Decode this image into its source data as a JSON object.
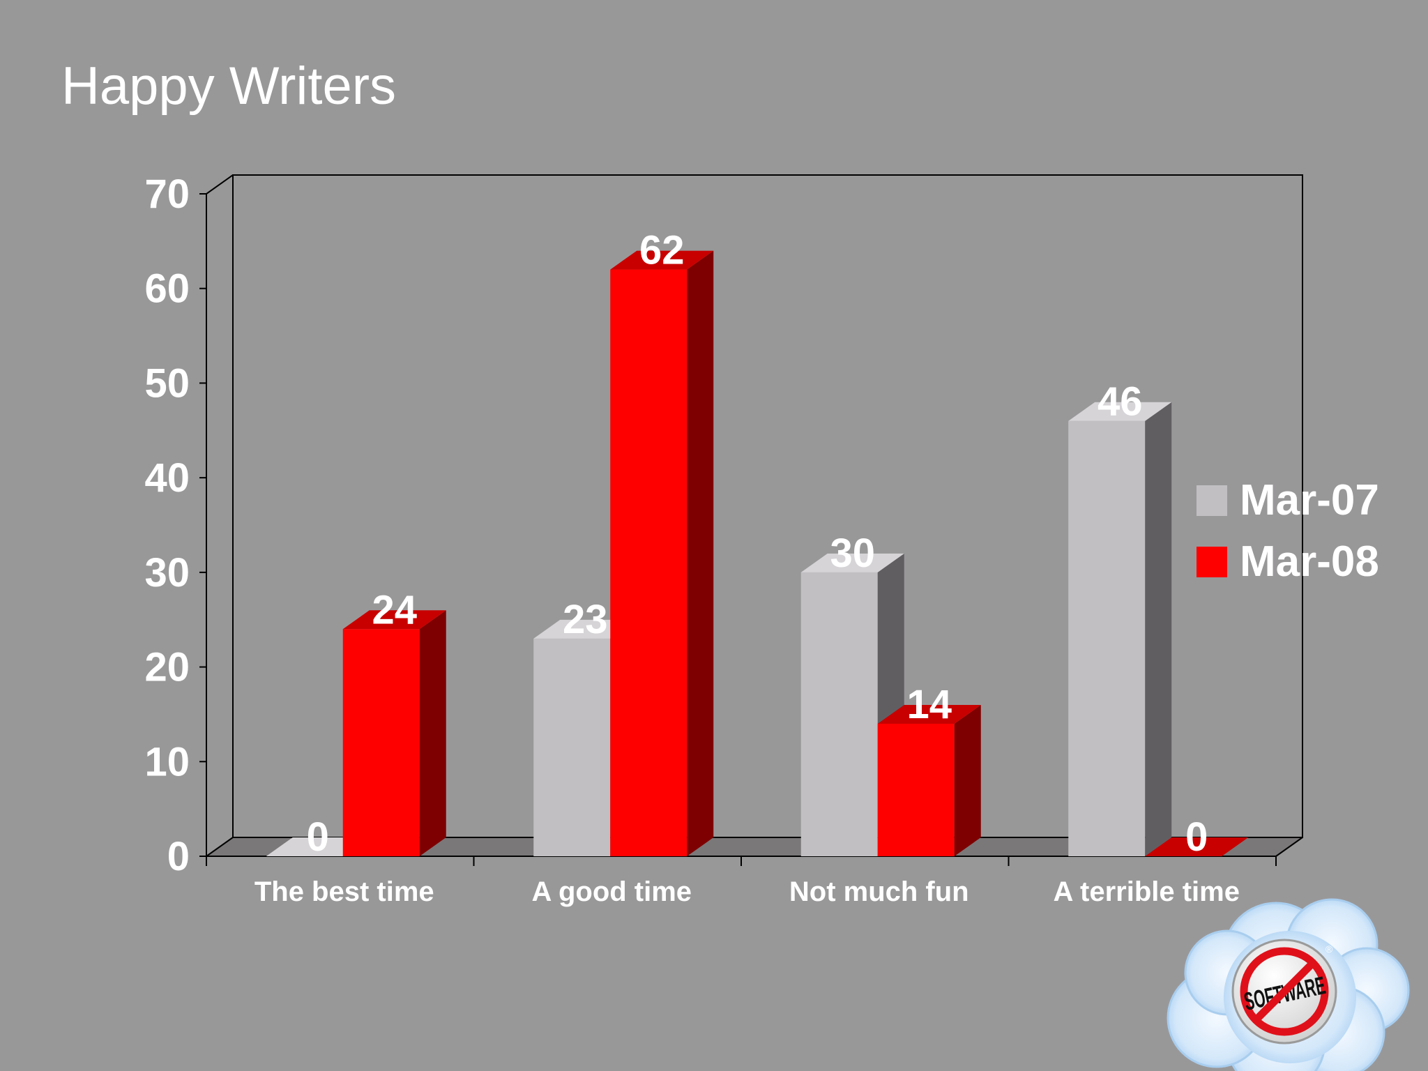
{
  "slide": {
    "title": "Happy Writers"
  },
  "chart_data": {
    "type": "bar",
    "title": "Happy Writers",
    "categories": [
      "The best time",
      "A good time",
      "Not much fun",
      "A terrible time"
    ],
    "series": [
      {
        "name": "Mar-07",
        "values": [
          0,
          23,
          30,
          46
        ],
        "color": "#c1bfc2",
        "side_color": "#615e62",
        "top_color": "#d6d4d7"
      },
      {
        "name": "Mar-08",
        "values": [
          24,
          62,
          14,
          0
        ],
        "color": "#ff0000",
        "side_color": "#7f0000",
        "top_color": "#c80000"
      }
    ],
    "ylim": [
      0,
      70
    ],
    "yticks": [
      0,
      10,
      20,
      30,
      40,
      50,
      60,
      70
    ],
    "data_labels": true,
    "legend": {
      "position": "right"
    },
    "style": "3d-clustered-column"
  },
  "logo": {
    "text": "SOFTWARE",
    "icon": "no-software-cloud-logo"
  }
}
